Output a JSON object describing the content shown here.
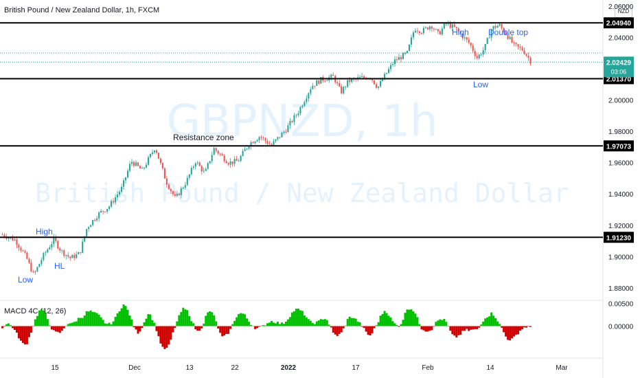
{
  "header": {
    "title": "British Pound / New Zealand Dollar, 1h, FXCM",
    "currency": "NZD"
  },
  "watermark": {
    "symbol": "GBPNZD, 1h",
    "description": "British Pound / New Zealand Dollar"
  },
  "colors": {
    "up": "#26a69a",
    "down": "#ef5350",
    "level_line": "#000000",
    "annotation_blue": "#2962ff",
    "price_badge": "#26a69a",
    "macd_green": "#00c000",
    "macd_red": "#d00000",
    "watermark": "#2196f3"
  },
  "chart_data": [
    {
      "type": "candlestick",
      "title": "British Pound / New Zealand Dollar, 1h, FXCM",
      "ylim": [
        1.872,
        2.064
      ],
      "y_ticks": [
        "2.06000",
        "2.04000",
        "2.02000",
        "2.00000",
        "1.98000",
        "1.96000",
        "1.94000",
        "1.92000",
        "1.90000",
        "1.88000"
      ],
      "x_ticks": [
        "15",
        "Dec",
        "13",
        "22",
        "2022",
        "17",
        "Feb",
        "14",
        "Mar"
      ],
      "price_path": [
        [
          0.0,
          1.914
        ],
        [
          2.1,
          1.9105
        ],
        [
          3.9,
          1.8995
        ],
        [
          5.1,
          1.888
        ],
        [
          6.6,
          1.9
        ],
        [
          8.4,
          1.911
        ],
        [
          9.6,
          1.9035
        ],
        [
          11.1,
          1.899
        ],
        [
          12.6,
          1.902
        ],
        [
          13.8,
          1.9185
        ],
        [
          15.6,
          1.927
        ],
        [
          17.4,
          1.932
        ],
        [
          19.5,
          1.944
        ],
        [
          21.0,
          1.961
        ],
        [
          22.8,
          1.955
        ],
        [
          24.9,
          1.97
        ],
        [
          26.7,
          1.948
        ],
        [
          28.2,
          1.937
        ],
        [
          30.0,
          1.948
        ],
        [
          31.5,
          1.961
        ],
        [
          33.0,
          1.953
        ],
        [
          34.5,
          1.969
        ],
        [
          36.9,
          1.96
        ],
        [
          38.4,
          1.961
        ],
        [
          40.2,
          1.972
        ],
        [
          42.0,
          1.977
        ],
        [
          43.8,
          1.971
        ],
        [
          46.2,
          1.981
        ],
        [
          48.3,
          1.993
        ],
        [
          50.4,
          2.009
        ],
        [
          51.9,
          2.013
        ],
        [
          54.0,
          2.015
        ],
        [
          55.2,
          2.005
        ],
        [
          56.4,
          2.012
        ],
        [
          58.2,
          2.014
        ],
        [
          60.0,
          2.015
        ],
        [
          61.2,
          2.008
        ],
        [
          62.1,
          2.014
        ],
        [
          63.9,
          2.025
        ],
        [
          66.0,
          2.03
        ],
        [
          67.2,
          2.046
        ],
        [
          68.4,
          2.044
        ],
        [
          69.9,
          2.048
        ],
        [
          71.1,
          2.042
        ],
        [
          72.3,
          2.049
        ],
        [
          73.8,
          2.046
        ],
        [
          75.0,
          2.041
        ],
        [
          76.2,
          2.036
        ],
        [
          77.4,
          2.027
        ],
        [
          78.6,
          2.033
        ],
        [
          79.8,
          2.046
        ],
        [
          81.0,
          2.048
        ],
        [
          82.2,
          2.042
        ],
        [
          83.4,
          2.035
        ],
        [
          84.9,
          2.032
        ],
        [
          86.1,
          2.025
        ]
      ],
      "horizontal_levels": [
        2.0494,
        2.0137,
        1.97073,
        1.9123
      ],
      "level_labels": [
        "2.04940",
        "2.01370",
        "1.97073",
        "1.91230"
      ],
      "current_price": "2.02429",
      "countdown": "03:06",
      "annotations": [
        {
          "text": "Low",
          "color": "blue"
        },
        {
          "text": "High",
          "color": "blue"
        },
        {
          "text": "HL",
          "color": "blue"
        },
        {
          "text": "Resistance zone",
          "color": "black"
        },
        {
          "text": "High",
          "color": "blue"
        },
        {
          "text": "Double top",
          "color": "blue"
        },
        {
          "text": "Low",
          "color": "blue"
        }
      ]
    },
    {
      "type": "histogram",
      "title": "MACD 4C (12, 26)",
      "ylim": [
        -0.007,
        0.0055
      ],
      "y_ticks": [
        "0.00500",
        "0.00000"
      ],
      "positive_color": "green",
      "negative_color": "red"
    }
  ]
}
